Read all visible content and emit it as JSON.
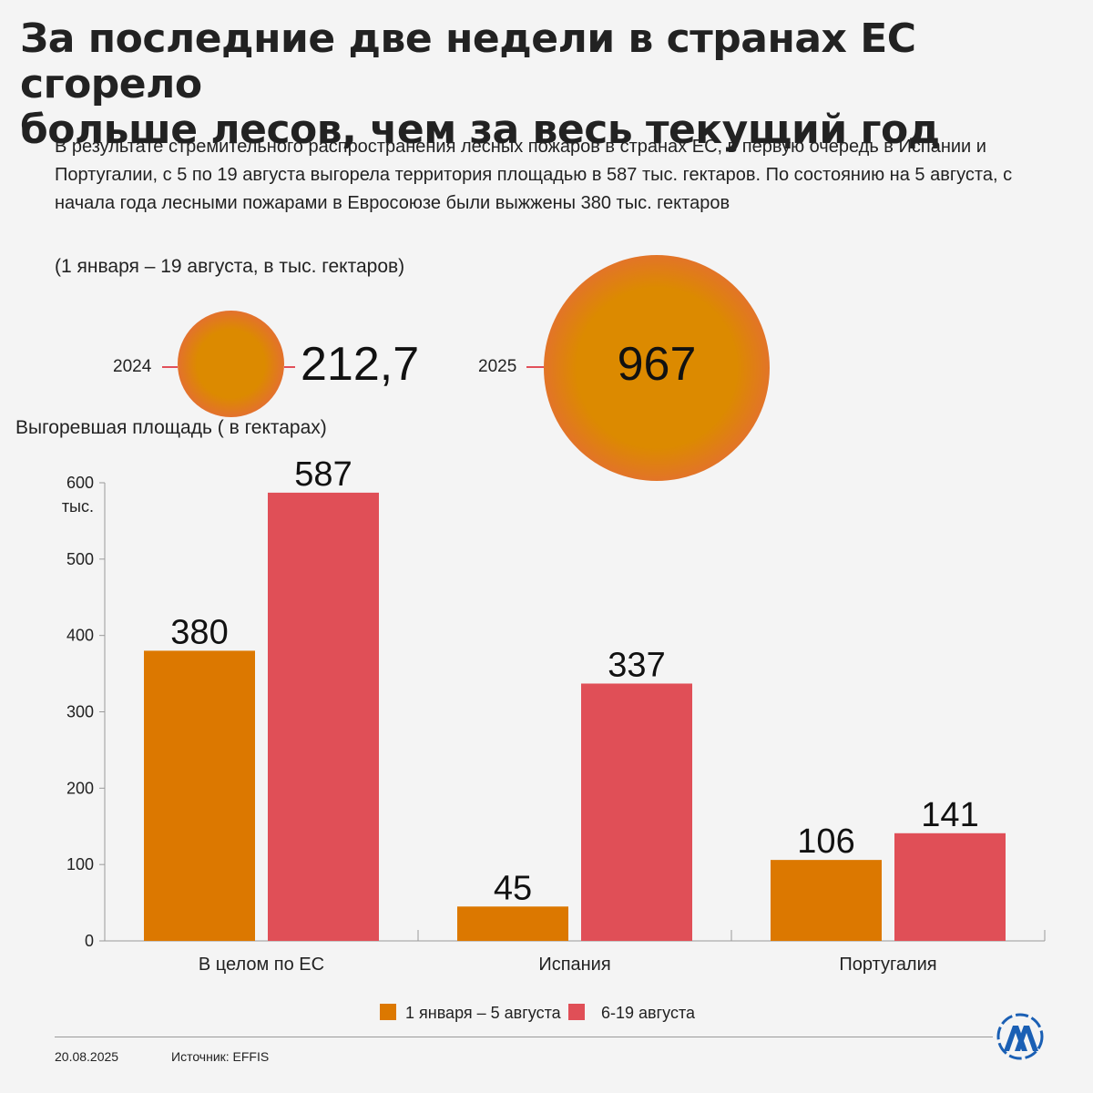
{
  "header": {
    "title_line1": "За последние две недели в странах ЕС сгорело",
    "title_line2": "больше лесов, чем за весь текущий год",
    "subtitle": "В результате стремительного распространения лесных пожаров в странах ЕС, в первую очередь в Испании и Португалии, с 5 по 19 августа выгорела территория площадью в 587 тыс. гектаров. По состоянию на 5 августа, с начала года лесными пожарами в Евросоюзе были выжжены 380 тыс. гектаров",
    "period": "(1 января – 19 августа, в тыс. гектаров)"
  },
  "circles": [
    {
      "year": "2024",
      "value": "212,7",
      "amount": 212.7
    },
    {
      "year": "2025",
      "value": "967",
      "amount": 967
    }
  ],
  "colors": {
    "orange": "#dc7800",
    "red": "#e04f57",
    "accent": "#1a5fb4"
  },
  "chart_data": {
    "type": "bar",
    "ylabel": "Выгоревшая площадь ( в гектарах)",
    "ylim": [
      0,
      600
    ],
    "yticks": [
      0,
      100,
      200,
      300,
      400,
      500,
      600
    ],
    "ytick_labels": [
      "0",
      "100",
      "200",
      "300",
      "400",
      "500",
      "600"
    ],
    "ytick_unit": "тыс.",
    "categories": [
      "В целом по ЕС",
      "Испания",
      "Португалия"
    ],
    "series": [
      {
        "name": "1 января – 5 августа",
        "color": "#dc7800",
        "values": [
          380,
          45,
          106
        ],
        "labels": [
          "380",
          "45",
          "106"
        ]
      },
      {
        "name": "6-19 августа",
        "color": "#e04f57",
        "values": [
          587,
          337,
          141
        ],
        "labels": [
          "587",
          "337",
          "141"
        ]
      }
    ],
    "legend_position": "bottom-center",
    "grid": false
  },
  "footer": {
    "date": "20.08.2025",
    "source": "Источник: EFFIS",
    "logo_icon": "aa-logo-icon"
  }
}
